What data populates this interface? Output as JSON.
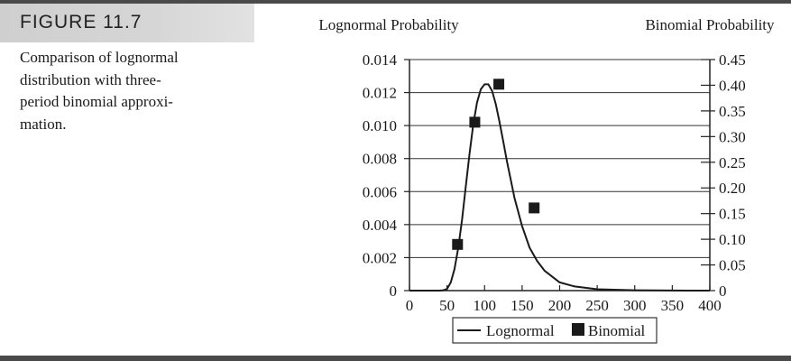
{
  "figure_label": "FIGURE 11.7",
  "caption_lines": [
    "Comparison of lognormal",
    "distribution with three-",
    "period binomial approxi-",
    "mation."
  ],
  "chart_data": {
    "type": "line",
    "left_axis_label": "Lognormal Probability",
    "right_axis_label": "Binomial Probability",
    "xlim": [
      0,
      400
    ],
    "ylim_left": [
      0,
      0.014
    ],
    "ylim_right": [
      0,
      0.45
    ],
    "x_ticks": [
      "0",
      "50",
      "100",
      "150",
      "200",
      "250",
      "300",
      "350",
      "400"
    ],
    "left_ticks": [
      "0",
      "0.002",
      "0.004",
      "0.006",
      "0.008",
      "0.010",
      "0.012",
      "0.014"
    ],
    "right_ticks": [
      "0",
      "0.05",
      "0.10",
      "0.15",
      "0.20",
      "0.25",
      "0.30",
      "0.35",
      "0.40",
      "0.45"
    ],
    "grid": true,
    "series": [
      {
        "name": "Lognormal",
        "kind": "line",
        "axis": "left",
        "x": [
          0,
          40,
          45,
          50,
          55,
          60,
          65,
          70,
          75,
          80,
          85,
          90,
          95,
          100,
          105,
          110,
          115,
          120,
          125,
          130,
          140,
          150,
          160,
          170,
          180,
          200,
          220,
          250,
          300,
          350,
          400
        ],
        "y": [
          0,
          0,
          2e-05,
          0.0001,
          0.0005,
          0.0013,
          0.0026,
          0.0043,
          0.0063,
          0.0083,
          0.0101,
          0.0114,
          0.0122,
          0.0125,
          0.0125,
          0.0121,
          0.0113,
          0.0102,
          0.009,
          0.0078,
          0.0056,
          0.0039,
          0.0026,
          0.0018,
          0.0012,
          0.0005,
          0.00025,
          8e-05,
          2e-05,
          5e-06,
          0
        ]
      },
      {
        "name": "Binomial",
        "kind": "scatter",
        "axis": "right",
        "x": [
          64,
          87,
          119,
          166
        ],
        "y": [
          0.09,
          0.328,
          0.402,
          0.161
        ]
      }
    ],
    "legend": [
      "Lognormal",
      "Binomial"
    ],
    "legend_position": "bottom"
  }
}
